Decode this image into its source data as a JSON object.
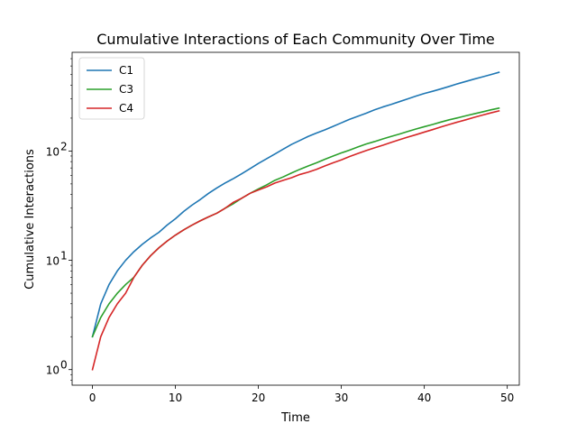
{
  "chart_data": {
    "type": "line",
    "title": "Cumulative Interactions of Each Community Over Time",
    "xlabel": "Time",
    "ylabel": "Cumulative Interactions",
    "yscale": "log",
    "xlim": [
      -2.45,
      51.45
    ],
    "ylim": [
      0.72,
      800
    ],
    "xticks": [
      0,
      10,
      20,
      30,
      40,
      50
    ],
    "yticks": [
      1,
      10,
      100
    ],
    "ytick_labels": [
      [
        "10",
        "0"
      ],
      [
        "10",
        "1"
      ],
      [
        "10",
        "2"
      ]
    ],
    "grid": false,
    "legend_position": "top-left",
    "x": [
      0,
      1,
      2,
      3,
      4,
      5,
      6,
      7,
      8,
      9,
      10,
      11,
      12,
      13,
      14,
      15,
      16,
      17,
      18,
      19,
      20,
      21,
      22,
      23,
      24,
      25,
      26,
      27,
      28,
      29,
      30,
      31,
      32,
      33,
      34,
      35,
      36,
      37,
      38,
      39,
      40,
      41,
      42,
      43,
      44,
      45,
      46,
      47,
      48,
      49
    ],
    "series": [
      {
        "name": "C1",
        "color": "#1f77b4",
        "values": [
          2,
          4,
          6,
          8,
          10,
          12,
          14,
          16,
          18,
          21,
          24,
          28,
          32,
          36,
          41,
          46,
          51,
          56,
          62,
          69,
          77,
          85,
          94,
          104,
          115,
          125,
          136,
          146,
          156,
          168,
          181,
          195,
          208,
          222,
          238,
          253,
          267,
          283,
          300,
          318,
          336,
          352,
          370,
          390,
          412,
          433,
          455,
          477,
          500,
          525
        ]
      },
      {
        "name": "C3",
        "color": "#2ca02c",
        "values": [
          2,
          3,
          4,
          5,
          6,
          7,
          9,
          11,
          13,
          15,
          17,
          19,
          21,
          23,
          25,
          27,
          30,
          33,
          37,
          41,
          45,
          49,
          54,
          58,
          63,
          68,
          73,
          78,
          84,
          90,
          96,
          102,
          109,
          116,
          122,
          129,
          136,
          143,
          151,
          159,
          167,
          175,
          184,
          193,
          201,
          210,
          219,
          228,
          238,
          247
        ]
      },
      {
        "name": "C4",
        "color": "#d62728",
        "values": [
          1,
          2,
          3,
          4,
          5,
          7,
          9,
          11,
          13,
          15,
          17,
          19,
          21,
          23,
          25,
          27,
          30,
          34,
          37,
          41,
          44,
          47,
          51,
          54,
          57,
          61,
          64,
          68,
          73,
          78,
          83,
          89,
          95,
          101,
          107,
          113,
          120,
          127,
          134,
          141,
          149,
          157,
          166,
          175,
          184,
          193,
          203,
          213,
          223,
          233
        ]
      }
    ]
  }
}
